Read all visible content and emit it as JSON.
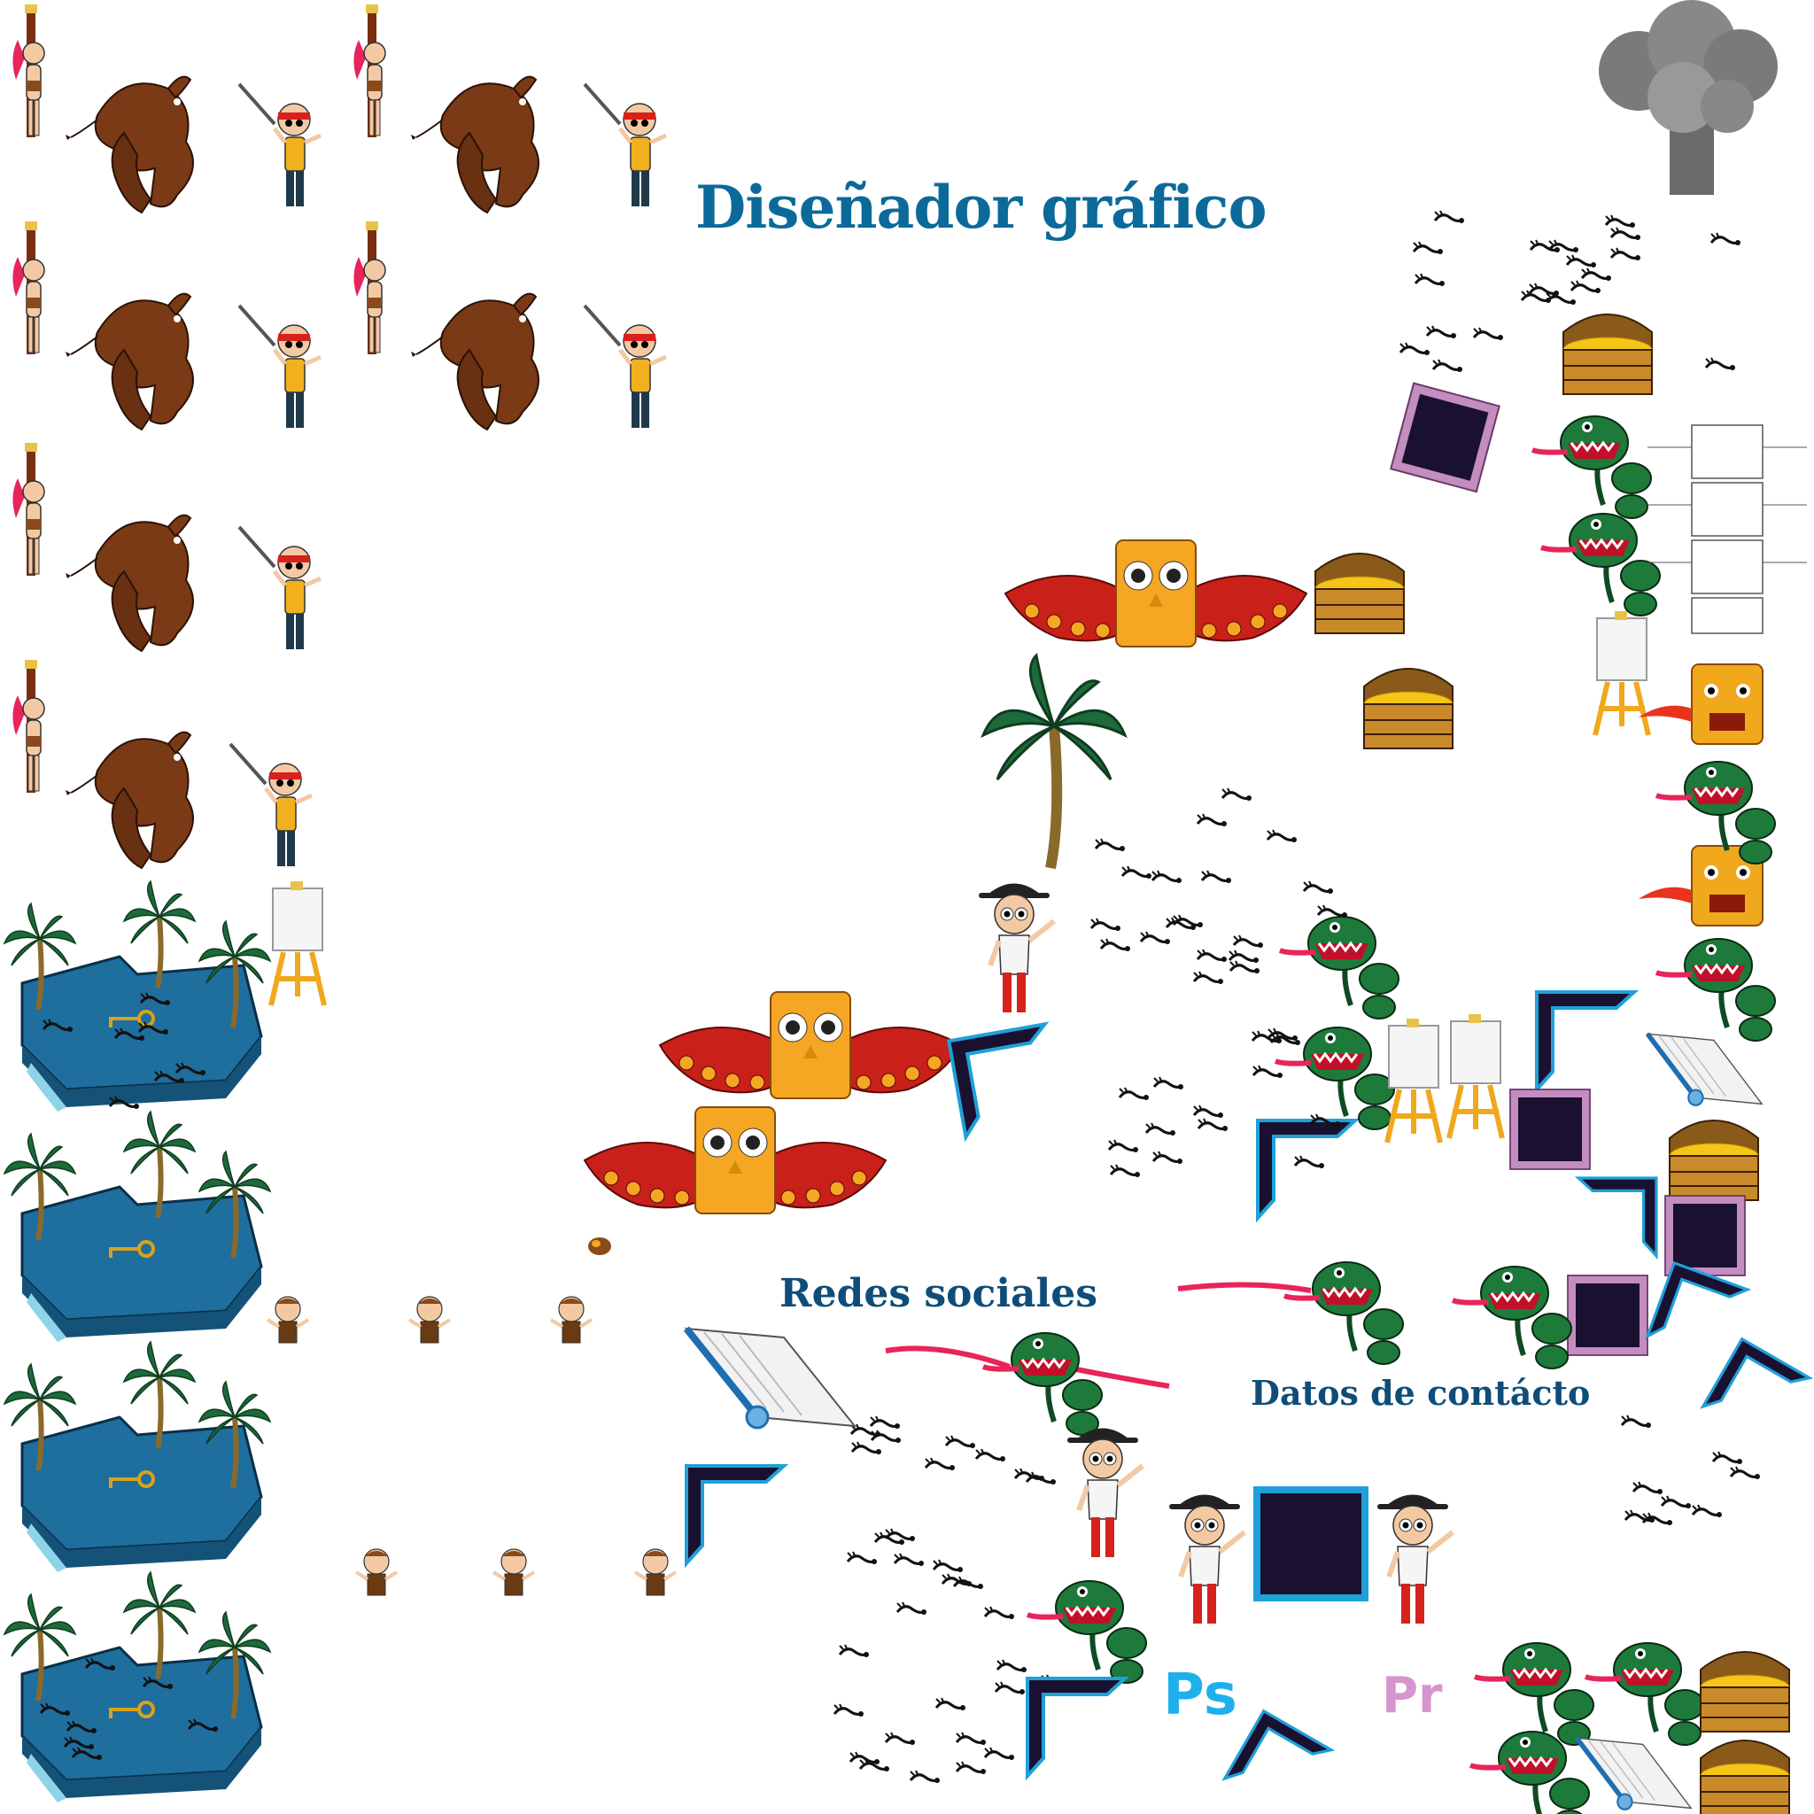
{
  "page": {
    "title": "Diseñador gráfico",
    "sections": {
      "social": "Redes sociales",
      "contact": "Datos de contácto"
    },
    "logos": {
      "photoshop": "Ps",
      "premiere": "Pr"
    }
  },
  "colors": {
    "title": "#0b6a9a",
    "section": "#0e4d7a",
    "photoshop": "#1fb0ec",
    "premiere": "#d795cf",
    "island_water": "#1e6e9e",
    "palm": "#1d6a3a",
    "plant": "#1e7a3a",
    "demon": "#7a3a16",
    "owl_body": "#f5a623",
    "owl_wing": "#c9201a",
    "chest": "#c98a2a",
    "gold": "#f5c518",
    "portal_dark": "#1a1030"
  },
  "icons": [
    "captive-girl-icon",
    "brown-demon-icon",
    "swordsman-icon",
    "island-icon",
    "palm-tree-icon",
    "easel-icon",
    "owl-icon",
    "treasure-chest-icon",
    "carnivorous-plant-icon",
    "scorpion-icon",
    "cowboy-icon",
    "small-boy-icon",
    "portal-frame-icon",
    "book-icon",
    "tiki-mask-icon",
    "smoke-cloud-icon",
    "stone-icon"
  ]
}
